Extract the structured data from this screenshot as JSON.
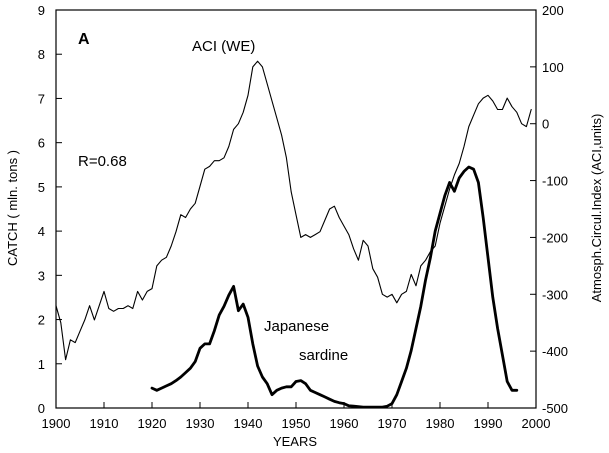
{
  "chart_data": {
    "type": "line",
    "panel_label": "A",
    "xlabel": "YEARS",
    "ylabel_left": "CATCH ( mln. tons )",
    "ylabel_right": "Atmosph.Circul.Index (ACI,units)",
    "xlim": [
      1900,
      2000
    ],
    "ylim_left": [
      0,
      9
    ],
    "ylim_right": [
      -500,
      200
    ],
    "x_ticks": [
      "1900",
      "1910",
      "1920",
      "1930",
      "1940",
      "1950",
      "1960",
      "1970",
      "1980",
      "1990",
      "2000"
    ],
    "y_ticks_left": [
      "0",
      "1",
      "2",
      "3",
      "4",
      "5",
      "6",
      "7",
      "8",
      "9"
    ],
    "y_ticks_right": [
      "-500",
      "-400",
      "-300",
      "-200",
      "-100",
      "0",
      "100",
      "200"
    ],
    "annotations": {
      "correlation": "R=0.68",
      "aci_label": "ACI (WE)",
      "sardine_label_line1": "Japanese",
      "sardine_label_line2": "sardine"
    },
    "series": [
      {
        "name": "ACI (WE)",
        "axis": "right",
        "x": [
          1900,
          1901,
          1902,
          1903,
          1904,
          1905,
          1906,
          1907,
          1908,
          1909,
          1910,
          1911,
          1912,
          1913,
          1914,
          1915,
          1916,
          1917,
          1918,
          1919,
          1920,
          1921,
          1922,
          1923,
          1924,
          1925,
          1926,
          1927,
          1928,
          1929,
          1930,
          1931,
          1932,
          1933,
          1934,
          1935,
          1936,
          1937,
          1938,
          1939,
          1940,
          1941,
          1942,
          1943,
          1944,
          1945,
          1946,
          1947,
          1948,
          1949,
          1950,
          1951,
          1952,
          1953,
          1954,
          1955,
          1956,
          1957,
          1958,
          1959,
          1960,
          1961,
          1962,
          1963,
          1964,
          1965,
          1966,
          1967,
          1968,
          1969,
          1970,
          1971,
          1972,
          1973,
          1974,
          1975,
          1976,
          1977,
          1978,
          1979,
          1980,
          1981,
          1982,
          1983,
          1984,
          1985,
          1986,
          1987,
          1988,
          1989,
          1990,
          1991,
          1992,
          1993,
          1994,
          1995,
          1996,
          1997,
          1998,
          1999
        ],
        "values": [
          -320,
          -350,
          -415,
          -380,
          -385,
          -365,
          -345,
          -320,
          -345,
          -320,
          -295,
          -325,
          -330,
          -325,
          -325,
          -320,
          -325,
          -295,
          -310,
          -295,
          -290,
          -250,
          -240,
          -235,
          -215,
          -190,
          -160,
          -165,
          -150,
          -140,
          -110,
          -80,
          -75,
          -65,
          -65,
          -60,
          -40,
          -10,
          0,
          20,
          50,
          100,
          110,
          100,
          70,
          40,
          10,
          -20,
          -60,
          -120,
          -160,
          -200,
          -195,
          -200,
          -195,
          -190,
          -170,
          -150,
          -145,
          -165,
          -180,
          -195,
          -220,
          -240,
          -205,
          -215,
          -255,
          -270,
          -300,
          -305,
          -300,
          -315,
          -300,
          -295,
          -265,
          -285,
          -250,
          -240,
          -225,
          -215,
          -175,
          -145,
          -115,
          -90,
          -70,
          -40,
          -5,
          15,
          35,
          45,
          50,
          40,
          25,
          25,
          45,
          30,
          20,
          0,
          -5,
          25
        ]
      },
      {
        "name": "Japanese sardine",
        "axis": "left",
        "x": [
          1920,
          1921,
          1922,
          1923,
          1924,
          1925,
          1926,
          1927,
          1928,
          1929,
          1930,
          1931,
          1932,
          1933,
          1934,
          1935,
          1936,
          1937,
          1938,
          1939,
          1940,
          1941,
          1942,
          1943,
          1944,
          1945,
          1946,
          1947,
          1948,
          1949,
          1950,
          1951,
          1952,
          1953,
          1954,
          1955,
          1956,
          1957,
          1958,
          1959,
          1960,
          1961,
          1962,
          1963,
          1964,
          1965,
          1966,
          1967,
          1968,
          1969,
          1970,
          1971,
          1972,
          1973,
          1974,
          1975,
          1976,
          1977,
          1978,
          1979,
          1980,
          1981,
          1982,
          1983,
          1984,
          1985,
          1986,
          1987,
          1988,
          1989,
          1990,
          1991,
          1992,
          1993,
          1994,
          1995,
          1996
        ],
        "values": [
          0.45,
          0.4,
          0.45,
          0.5,
          0.55,
          0.62,
          0.7,
          0.8,
          0.9,
          1.05,
          1.35,
          1.45,
          1.45,
          1.75,
          2.1,
          2.3,
          2.55,
          2.75,
          2.2,
          2.35,
          2.05,
          1.45,
          0.95,
          0.7,
          0.55,
          0.3,
          0.4,
          0.45,
          0.48,
          0.48,
          0.6,
          0.62,
          0.55,
          0.4,
          0.35,
          0.3,
          0.25,
          0.2,
          0.15,
          0.12,
          0.1,
          0.05,
          0.04,
          0.03,
          0.02,
          0.02,
          0.02,
          0.02,
          0.02,
          0.04,
          0.1,
          0.3,
          0.6,
          0.9,
          1.3,
          1.8,
          2.3,
          2.9,
          3.4,
          4.0,
          4.4,
          4.8,
          5.1,
          4.9,
          5.2,
          5.35,
          5.45,
          5.4,
          5.1,
          4.3,
          3.4,
          2.5,
          1.8,
          1.2,
          0.6,
          0.4,
          0.4
        ]
      }
    ]
  }
}
